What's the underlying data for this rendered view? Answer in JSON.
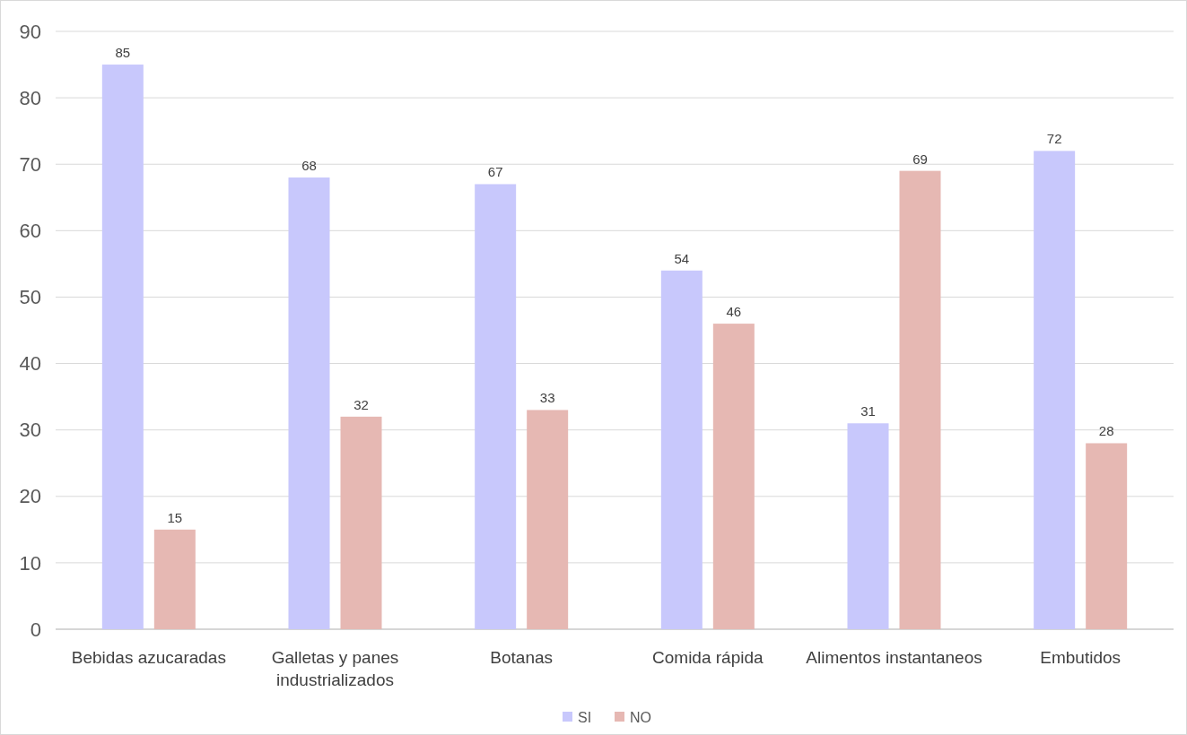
{
  "chart_data": {
    "type": "bar",
    "categories": [
      "Bebidas azucaradas",
      "Galletas y panes industrializados",
      "Botanas",
      "Comida rápida",
      "Alimentos instantaneos",
      "Embutidos"
    ],
    "series": [
      {
        "name": "SI",
        "color": "#c8c8fc",
        "values": [
          85,
          68,
          67,
          54,
          31,
          72
        ]
      },
      {
        "name": "NO",
        "color": "#e6b8b3",
        "values": [
          15,
          32,
          33,
          46,
          69,
          28
        ]
      }
    ],
    "ylim": [
      0,
      90
    ],
    "yticks": [
      0,
      10,
      20,
      30,
      40,
      50,
      60,
      70,
      80,
      90
    ],
    "grid": "y",
    "legend": "bottom",
    "data_labels": true
  }
}
